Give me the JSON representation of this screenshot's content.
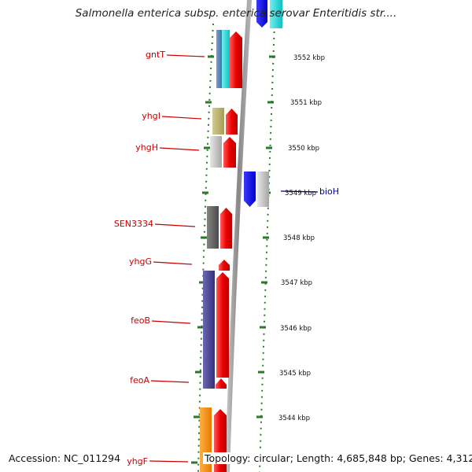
{
  "title": "Salmonella enterica subsp. enterica serovar Enteritidis str....",
  "footer": {
    "accession": "Accession: NC_011294",
    "topology": "Topology: circular; Length: 4,685,848 bp; Genes: 4,312"
  },
  "colors": {
    "gene_label": "#cc0000",
    "bioH_label": "#000099",
    "tick_marks": "#2a7a2a",
    "backbone": "#8a8a8a"
  },
  "scale_labels": [
    {
      "text": "3552 kbp"
    },
    {
      "text": "3551 kbp"
    },
    {
      "text": "3550 kbp"
    },
    {
      "text": "3549 kbp"
    },
    {
      "text": "3548 kbp"
    },
    {
      "text": "3547 kbp"
    },
    {
      "text": "3546 kbp"
    },
    {
      "text": "3545 kbp"
    },
    {
      "text": "3544 kbp"
    }
  ],
  "gene_labels": [
    {
      "text": "gntT",
      "strand": "left"
    },
    {
      "text": "yhgI",
      "strand": "left"
    },
    {
      "text": "yhgH",
      "strand": "left"
    },
    {
      "text": "SEN3334",
      "strand": "left"
    },
    {
      "text": "yhgG",
      "strand": "left"
    },
    {
      "text": "feoB",
      "strand": "left"
    },
    {
      "text": "feoA",
      "strand": "left"
    },
    {
      "text": "yhgF",
      "strand": "left"
    },
    {
      "text": "bioH",
      "strand": "right"
    }
  ]
}
